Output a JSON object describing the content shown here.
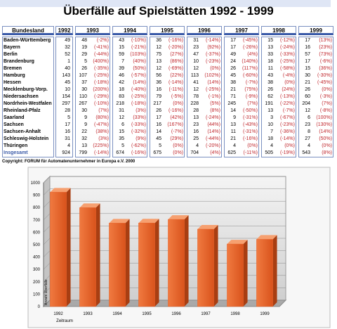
{
  "title": "Überfälle auf Spielstätten 1992 - 1999",
  "table": {
    "header": [
      "Bundesland",
      "1992",
      "1993",
      "1994",
      "1995",
      "1996",
      "1997",
      "1998",
      "1999"
    ],
    "rows": [
      [
        "Baden-Württemberg",
        49,
        48,
        "(-2%)",
        43,
        "(-10%)",
        36,
        "(-16%)",
        31,
        "(-14%)",
        17,
        "(-45%)",
        15,
        "(-12%)",
        17,
        "(13%)"
      ],
      [
        "Bayern",
        32,
        19,
        "(-41%)",
        15,
        "(-21%)",
        12,
        "(-20%)",
        23,
        "(92%)",
        17,
        "(-26%)",
        13,
        "(-24%)",
        16,
        "(23%)"
      ],
      [
        "Berlin",
        52,
        29,
        "(-44%)",
        59,
        "(103%)",
        75,
        "(27%)",
        47,
        "(-37%)",
        49,
        "(4%)",
        33,
        "(-33%)",
        57,
        "(73%)"
      ],
      [
        "Brandenburg",
        1,
        5,
        "(400%)",
        7,
        "(40%)",
        13,
        "(86%)",
        10,
        "(-23%)",
        24,
        "(140%)",
        18,
        "(-25%)",
        17,
        "(-6%)"
      ],
      [
        "Bremen",
        40,
        26,
        "(-35%)",
        39,
        "(50%)",
        12,
        "(-69%)",
        12,
        "(0%)",
        26,
        "(117%)",
        11,
        "(-58%)",
        15,
        "(36%)"
      ],
      [
        "Hamburg",
        143,
        107,
        "(-25%)",
        46,
        "(-57%)",
        56,
        "(22%)",
        113,
        "(102%)",
        45,
        "(-60%)",
        43,
        "(-4%)",
        30,
        "(-30%)"
      ],
      [
        "Hessen",
        45,
        37,
        "(-18%)",
        42,
        "(14%)",
        36,
        "(-14%)",
        41,
        "(14%)",
        38,
        "(-7%)",
        38,
        "(0%)",
        21,
        "(-45%)"
      ],
      [
        "Mecklenburg-Vorp.",
        10,
        30,
        "(200%)",
        18,
        "(-40%)",
        16,
        "(-11%)",
        12,
        "(-25%)",
        21,
        "(75%)",
        26,
        "(24%)",
        26,
        "(0%)"
      ],
      [
        "Niedersachsen",
        154,
        110,
        "(-29%)",
        83,
        "(-25%)",
        79,
        "(-5%)",
        78,
        "(-1%)",
        71,
        "(-9%)",
        62,
        "(-13%)",
        60,
        "(-3%)"
      ],
      [
        "Nordrhein-Westfalen",
        297,
        267,
        "(-10%)",
        218,
        "(-18%)",
        217,
        "(0%)",
        228,
        "(5%)",
        245,
        "(7%)",
        191,
        "(-22%)",
        204,
        "(7%)"
      ],
      [
        "Rheinland-Pfalz",
        28,
        30,
        "(7%)",
        31,
        "(3%)",
        26,
        "(-16%)",
        28,
        "(8%)",
        14,
        "(-50%)",
        13,
        "(-7%)",
        12,
        "(-8%)"
      ],
      [
        "Saarland",
        5,
        9,
        "(80%)",
        12,
        "(33%)",
        17,
        "(42%)",
        13,
        "(-24%)",
        9,
        "(-31%)",
        3,
        "(-67%)",
        6,
        "(100%)"
      ],
      [
        "Sachsen",
        17,
        9,
        "(-47%)",
        6,
        "(-33%)",
        16,
        "(167%)",
        23,
        "(44%)",
        13,
        "(-43%)",
        10,
        "(-23%)",
        23,
        "(130%)"
      ],
      [
        "Sachsen-Anhalt",
        16,
        22,
        "(38%)",
        15,
        "(-32%)",
        14,
        "(-7%)",
        16,
        "(14%)",
        11,
        "(-31%)",
        7,
        "(-36%)",
        8,
        "(14%)"
      ],
      [
        "Schleswig-Holstein",
        31,
        32,
        "(3%)",
        35,
        "(9%)",
        45,
        "(29%)",
        25,
        "(-44%)",
        21,
        "(-16%)",
        18,
        "(-14%)",
        27,
        "(50%)"
      ],
      [
        "Thüringen",
        4,
        13,
        "(225%)",
        5,
        "(-62%)",
        5,
        "(0%)",
        4,
        "(-20%)",
        4,
        "(0%)",
        4,
        "(0%)",
        4,
        "(0%)"
      ],
      [
        "Insgesamt",
        924,
        799,
        "(-14%)",
        674,
        "(-16%)",
        675,
        "(0%)",
        704,
        "(4%)",
        625,
        "(-11%)",
        505,
        "(-19%)",
        543,
        "(8%)"
      ]
    ]
  },
  "copyright": "Copyright: FORUM für Automatenunternehmer in Europa e.V. 2000",
  "chart_data": {
    "type": "bar",
    "categories": [
      "1992",
      "1993",
      "1994",
      "1995",
      "1996",
      "1997",
      "1998",
      "1999"
    ],
    "values": [
      924,
      799,
      674,
      675,
      704,
      625,
      505,
      543
    ],
    "color": "#e8622a",
    "ylim": [
      0,
      1000
    ],
    "yticks": [
      0,
      100,
      200,
      300,
      400,
      500,
      600,
      700,
      800,
      900,
      1000
    ],
    "grid": true,
    "ylabel": "Anzahl Überfälle",
    "xlabel": "Zeitraum"
  }
}
